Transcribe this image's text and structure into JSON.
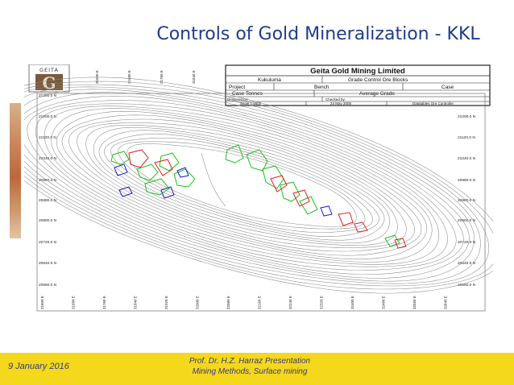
{
  "slide": {
    "title": "Controls of Gold Mineralization - KKL"
  },
  "map": {
    "company": "Geita Gold Mining Limited",
    "logo_text": "GEITA",
    "row1": [
      "Kukuluma",
      "Grade Control Ore Blocks"
    ],
    "row2": [
      "Project",
      "Bench",
      "Case"
    ],
    "row3": [
      "Case Tonnes",
      "Average Grade"
    ],
    "row4": [
      "Designed by:",
      "Checked by:"
    ],
    "row5": [
      "Scale 1:2000",
      "24 May 2005",
      "Datatables Ore Controller"
    ],
    "y_labels_left": [
      "21280.0 N",
      "21200.0 N",
      "21120.0 N",
      "21040.0 N",
      "20960.0 N",
      "20880.0 N",
      "20800.0 N",
      "20720.0 N",
      "20640.0 N",
      "20560.0 N"
    ],
    "y_labels_right": [
      "21200.0 N",
      "21120.0 N",
      "21040.0 N",
      "20960.0 N",
      "20880.0 N",
      "20800.0 N",
      "20720.0 N",
      "20640.0 N",
      "20560.0 N"
    ],
    "x_labels": [
      "31600 E",
      "31680 E",
      "31760 E",
      "31840 E",
      "31920 E",
      "32000 E",
      "32080 E",
      "32160 E",
      "32240 E",
      "32320 E",
      "32400 E",
      "32480 E",
      "32560 E",
      "32640 E"
    ],
    "colors": {
      "contour": "#8a8a8a",
      "green": "#1fbf1f",
      "red": "#e02020",
      "blue": "#1c1cc8"
    }
  },
  "footer": {
    "date": "9 January 2016",
    "line1": "Prof. Dr. H.Z. Harraz Presentation",
    "line2": "Mining Methods, Surface mining"
  }
}
